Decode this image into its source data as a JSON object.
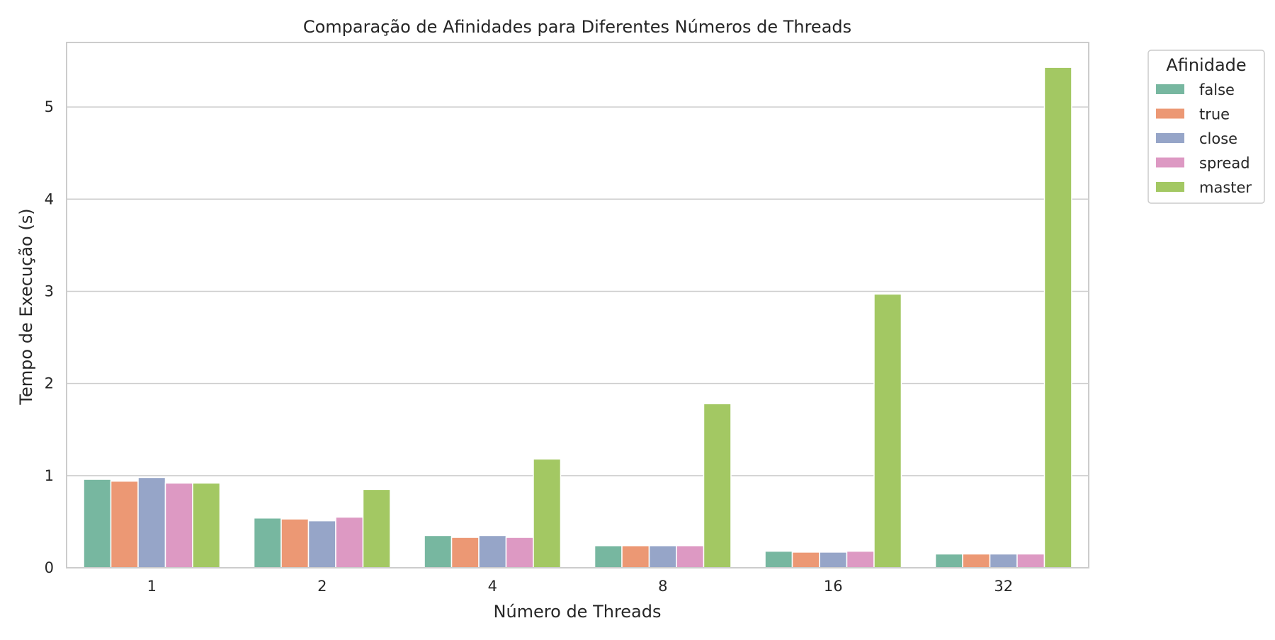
{
  "chart_data": {
    "type": "bar",
    "title": "Comparação de Afinidades para Diferentes Números de Threads",
    "xlabel": "Número de Threads",
    "ylabel": "Tempo de Execução (s)",
    "categories": [
      "1",
      "2",
      "4",
      "8",
      "16",
      "32"
    ],
    "ylim": [
      0,
      5.7
    ],
    "yticks": [
      0,
      1,
      2,
      3,
      4,
      5
    ],
    "grid": "horizontal",
    "legend": {
      "title": "Afinidade",
      "placement": "outside-top-right"
    },
    "series": [
      {
        "name": "false",
        "color": "#77b7a0",
        "values": [
          0.96,
          0.54,
          0.35,
          0.24,
          0.18,
          0.15
        ]
      },
      {
        "name": "true",
        "color": "#ec9874",
        "values": [
          0.94,
          0.53,
          0.33,
          0.24,
          0.17,
          0.15
        ]
      },
      {
        "name": "close",
        "color": "#96a5c8",
        "values": [
          0.98,
          0.51,
          0.35,
          0.24,
          0.17,
          0.15
        ]
      },
      {
        "name": "spread",
        "color": "#dd99c3",
        "values": [
          0.92,
          0.55,
          0.33,
          0.24,
          0.18,
          0.15
        ]
      },
      {
        "name": "master",
        "color": "#a3c863",
        "values": [
          0.92,
          0.85,
          1.18,
          1.78,
          2.97,
          5.43
        ]
      }
    ]
  }
}
